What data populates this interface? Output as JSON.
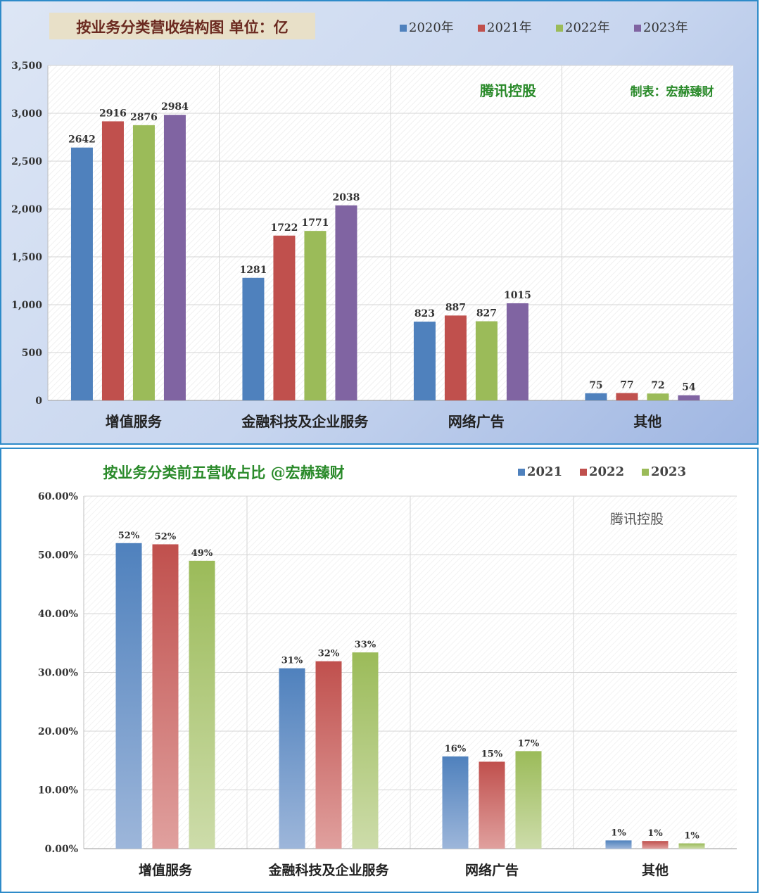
{
  "chart_data": [
    {
      "type": "bar",
      "title": "按业务分类营收结构图 单位：亿",
      "watermark_company": "腾讯控股",
      "watermark_credit": "制表：宏赫臻财",
      "categories": [
        "增值服务",
        "金融科技及企业服务",
        "网络广告",
        "其他"
      ],
      "series": [
        {
          "name": "2020年",
          "values": [
            2642,
            1281,
            823,
            75
          ],
          "color": "#4f81bd"
        },
        {
          "name": "2021年",
          "values": [
            2916,
            1722,
            887,
            77
          ],
          "color": "#c0504d"
        },
        {
          "name": "2022年",
          "values": [
            2876,
            1771,
            827,
            72
          ],
          "color": "#9bbb59"
        },
        {
          "name": "2023年",
          "values": [
            2984,
            2038,
            1015,
            54
          ],
          "color": "#8064a2"
        }
      ],
      "ylim": [
        0,
        3500
      ],
      "yticks": [
        0,
        500,
        1000,
        1500,
        2000,
        2500,
        3000,
        3500
      ],
      "ytick_labels": [
        "0",
        "500",
        "1,000",
        "1,500",
        "2,000",
        "2,500",
        "3,000",
        "3,500"
      ],
      "grid": true,
      "legend": "top-right"
    },
    {
      "type": "bar",
      "title": "按业务分类前五营收占比 @宏赫臻财",
      "watermark_company": "腾讯控股",
      "categories": [
        "增值服务",
        "金融科技及企业服务",
        "网络广告",
        "其他"
      ],
      "series": [
        {
          "name": "2021",
          "values": [
            52.0,
            30.7,
            15.7,
            1.4
          ],
          "labels": [
            "52%",
            "31%",
            "16%",
            "1%"
          ],
          "color": "#4f81bd"
        },
        {
          "name": "2022",
          "values": [
            51.8,
            31.9,
            14.8,
            1.3
          ],
          "labels": [
            "52%",
            "32%",
            "15%",
            "1%"
          ],
          "color": "#c0504d"
        },
        {
          "name": "2023",
          "values": [
            49.0,
            33.4,
            16.6,
            0.9
          ],
          "labels": [
            "49%",
            "33%",
            "17%",
            "1%"
          ],
          "color": "#9bbb59"
        }
      ],
      "ylim": [
        0,
        60
      ],
      "yticks": [
        0,
        10,
        20,
        30,
        40,
        50,
        60
      ],
      "ytick_labels": [
        "0.00%",
        "10.00%",
        "20.00%",
        "30.00%",
        "40.00%",
        "50.00%",
        "60.00%"
      ],
      "grid": true,
      "legend": "top-right"
    }
  ]
}
